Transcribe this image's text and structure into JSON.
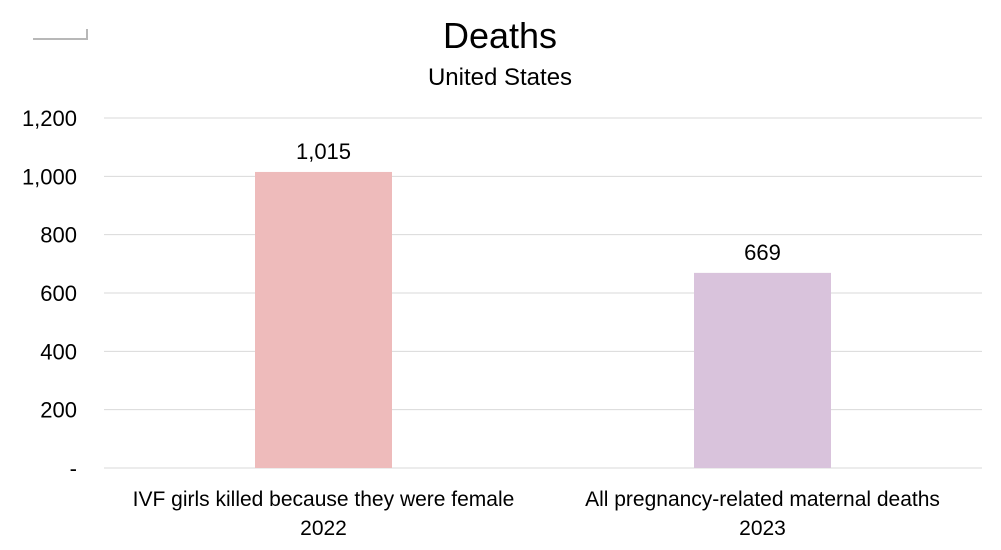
{
  "chart_data": {
    "type": "bar",
    "title": "Deaths",
    "subtitle": "United States",
    "xlabel": "",
    "ylabel": "",
    "categories": [
      [
        "IVF girls killed because they were female",
        "2022"
      ],
      [
        "All pregnancy-related maternal deaths",
        "2023"
      ]
    ],
    "values": [
      1015,
      669
    ],
    "data_labels": [
      "1,015",
      "669"
    ],
    "bar_colors": [
      "#eebbbb",
      "#d9c3dc"
    ],
    "ylim": [
      0,
      1200
    ],
    "yticks": [
      0,
      200,
      400,
      600,
      800,
      1000,
      1200
    ],
    "ytick_labels": [
      "-",
      "200",
      "400",
      "600",
      "800",
      "1,000",
      "1,200"
    ],
    "grid": true,
    "grid_color": "#d9d9d9",
    "legend": "none"
  }
}
